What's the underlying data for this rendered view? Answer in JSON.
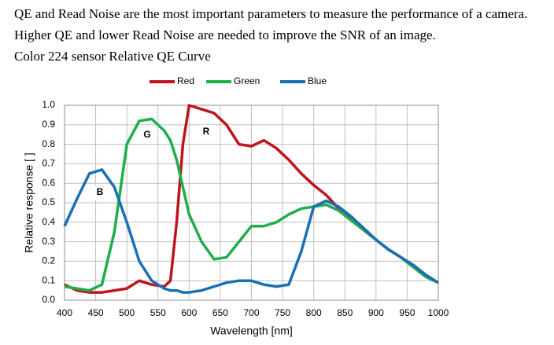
{
  "text": [
    "QE and Read Noise are the most important parameters to measure the performance of a camera.",
    "Higher QE and lower Read Noise are needed to improve the SNR of an image.",
    "Color 224 sensor Relative QE Curve"
  ],
  "chart_data": {
    "type": "line",
    "x_label": "Wavelength [nm]",
    "y_label": "Relative response [ ]",
    "x": [
      400,
      420,
      440,
      460,
      480,
      500,
      520,
      540,
      560,
      570,
      580,
      590,
      600,
      620,
      640,
      660,
      680,
      700,
      720,
      740,
      760,
      780,
      800,
      820,
      840,
      860,
      880,
      900,
      920,
      940,
      960,
      980,
      1000
    ],
    "series": [
      {
        "name": "Red",
        "color": "#c0141c",
        "values": [
          0.08,
          0.05,
          0.04,
          0.04,
          0.05,
          0.06,
          0.1,
          0.08,
          0.07,
          0.1,
          0.4,
          0.8,
          1.0,
          0.98,
          0.96,
          0.9,
          0.8,
          0.79,
          0.82,
          0.78,
          0.72,
          0.65,
          0.59,
          0.54,
          0.47,
          0.42,
          0.37,
          0.31,
          0.26,
          0.22,
          0.17,
          0.12,
          0.09
        ]
      },
      {
        "name": "Green",
        "color": "#1fae4b",
        "values": [
          0.07,
          0.06,
          0.05,
          0.08,
          0.35,
          0.8,
          0.92,
          0.93,
          0.87,
          0.82,
          0.72,
          0.58,
          0.44,
          0.3,
          0.21,
          0.22,
          0.3,
          0.38,
          0.38,
          0.4,
          0.44,
          0.47,
          0.48,
          0.49,
          0.46,
          0.41,
          0.36,
          0.31,
          0.26,
          0.22,
          0.17,
          0.12,
          0.09
        ]
      },
      {
        "name": "Blue",
        "color": "#1b6fb5",
        "values": [
          0.38,
          0.52,
          0.65,
          0.67,
          0.58,
          0.4,
          0.2,
          0.1,
          0.06,
          0.05,
          0.05,
          0.04,
          0.04,
          0.05,
          0.07,
          0.09,
          0.1,
          0.1,
          0.08,
          0.07,
          0.08,
          0.25,
          0.48,
          0.51,
          0.48,
          0.43,
          0.37,
          0.31,
          0.26,
          0.22,
          0.18,
          0.13,
          0.09
        ]
      }
    ],
    "annotations": [
      "G",
      "R",
      "B"
    ],
    "xlim": [
      400,
      1000
    ],
    "xticks": [
      400,
      450,
      500,
      550,
      600,
      650,
      700,
      750,
      800,
      850,
      900,
      950,
      1000
    ],
    "ylim": [
      0,
      1
    ],
    "yticks": [
      {
        "value": 0,
        "label": "0.0"
      },
      0.1,
      0.2,
      0.3,
      0.4,
      0.5,
      0.6,
      0.7,
      0.8,
      0.9,
      {
        "value": 1,
        "label": "1.0"
      }
    ],
    "grid": true,
    "legend": "top"
  }
}
